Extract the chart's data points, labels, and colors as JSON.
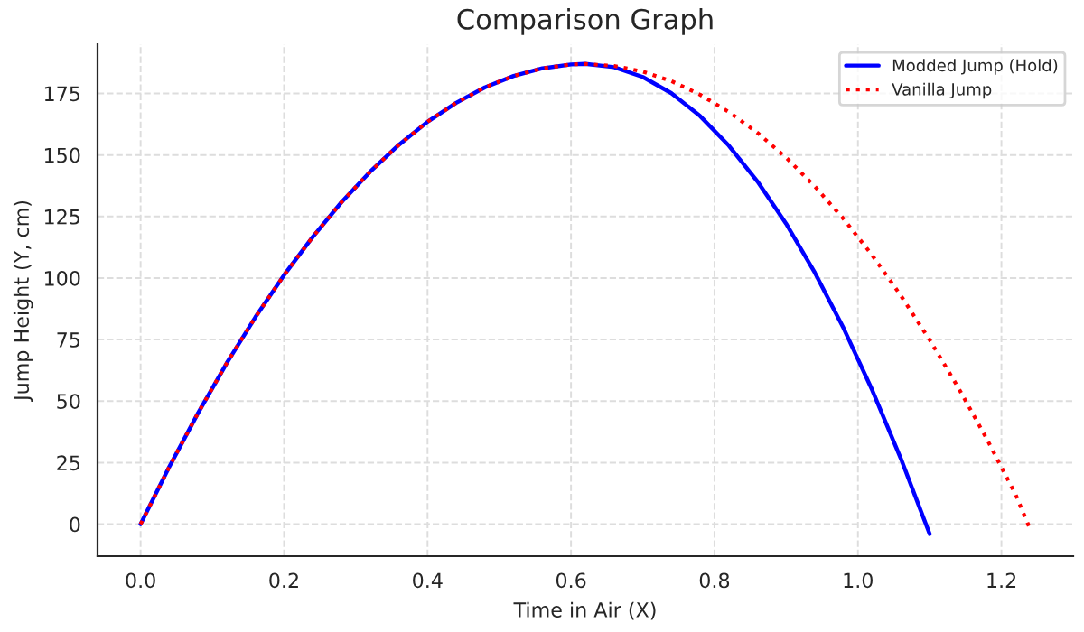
{
  "chart_data": {
    "type": "line",
    "title": "Comparison Graph",
    "xlabel": "Time in Air (X)",
    "ylabel": "Jump Height (Y, cm)",
    "xlim": [
      -0.06,
      1.3
    ],
    "ylim": [
      -13,
      195
    ],
    "xticks": [
      {
        "value": 0,
        "label": "0.0"
      },
      0.2,
      0.4,
      0.6,
      0.8,
      {
        "value": 1,
        "label": "1.0"
      },
      1.2
    ],
    "yticks": [
      0,
      25,
      50,
      75,
      100,
      125,
      150,
      175
    ],
    "grid": true,
    "legend": "top right",
    "series": [
      {
        "name": "Modded Jump (Hold)",
        "color": "#0000ff",
        "line_style": "solid",
        "x": [
          0,
          0.04,
          0.08,
          0.12,
          0.16,
          0.2,
          0.24,
          0.28,
          0.32,
          0.36,
          0.4,
          0.44,
          0.48,
          0.52,
          0.56,
          0.6,
          0.62,
          0.66,
          0.7,
          0.74,
          0.78,
          0.82,
          0.86,
          0.9,
          0.94,
          0.98,
          1.02,
          1.06,
          1.1
        ],
        "values": [
          0,
          23.3,
          45.1,
          65.4,
          84.1,
          101.2,
          116.7,
          130.8,
          143.2,
          154.1,
          163.5,
          171.2,
          177.5,
          182.1,
          185.2,
          186.8,
          187,
          185.7,
          181.7,
          175.1,
          165.8,
          153.8,
          139.2,
          122,
          102.1,
          79.6,
          54.4,
          26.5,
          -4
        ]
      },
      {
        "name": "Vanilla Jump",
        "color": "#ff0000",
        "line_style": "dotted",
        "x": [
          0,
          0.04,
          0.08,
          0.12,
          0.16,
          0.2,
          0.24,
          0.28,
          0.32,
          0.36,
          0.4,
          0.44,
          0.48,
          0.52,
          0.56,
          0.6,
          0.62,
          0.66,
          0.7,
          0.74,
          0.78,
          0.82,
          0.86,
          0.9,
          0.94,
          0.98,
          1.02,
          1.06,
          1.1,
          1.14,
          1.18,
          1.22,
          1.24
        ],
        "values": [
          0,
          23.3,
          45.1,
          65.4,
          84.1,
          101.2,
          116.7,
          130.8,
          143.2,
          154.1,
          163.5,
          171.2,
          177.5,
          182.1,
          185.2,
          186.8,
          187,
          186.2,
          183.9,
          180,
          174.5,
          167.5,
          159,
          148.9,
          137.2,
          124,
          109.2,
          92.8,
          74.9,
          55.4,
          34.4,
          11.9,
          -2
        ]
      }
    ]
  }
}
